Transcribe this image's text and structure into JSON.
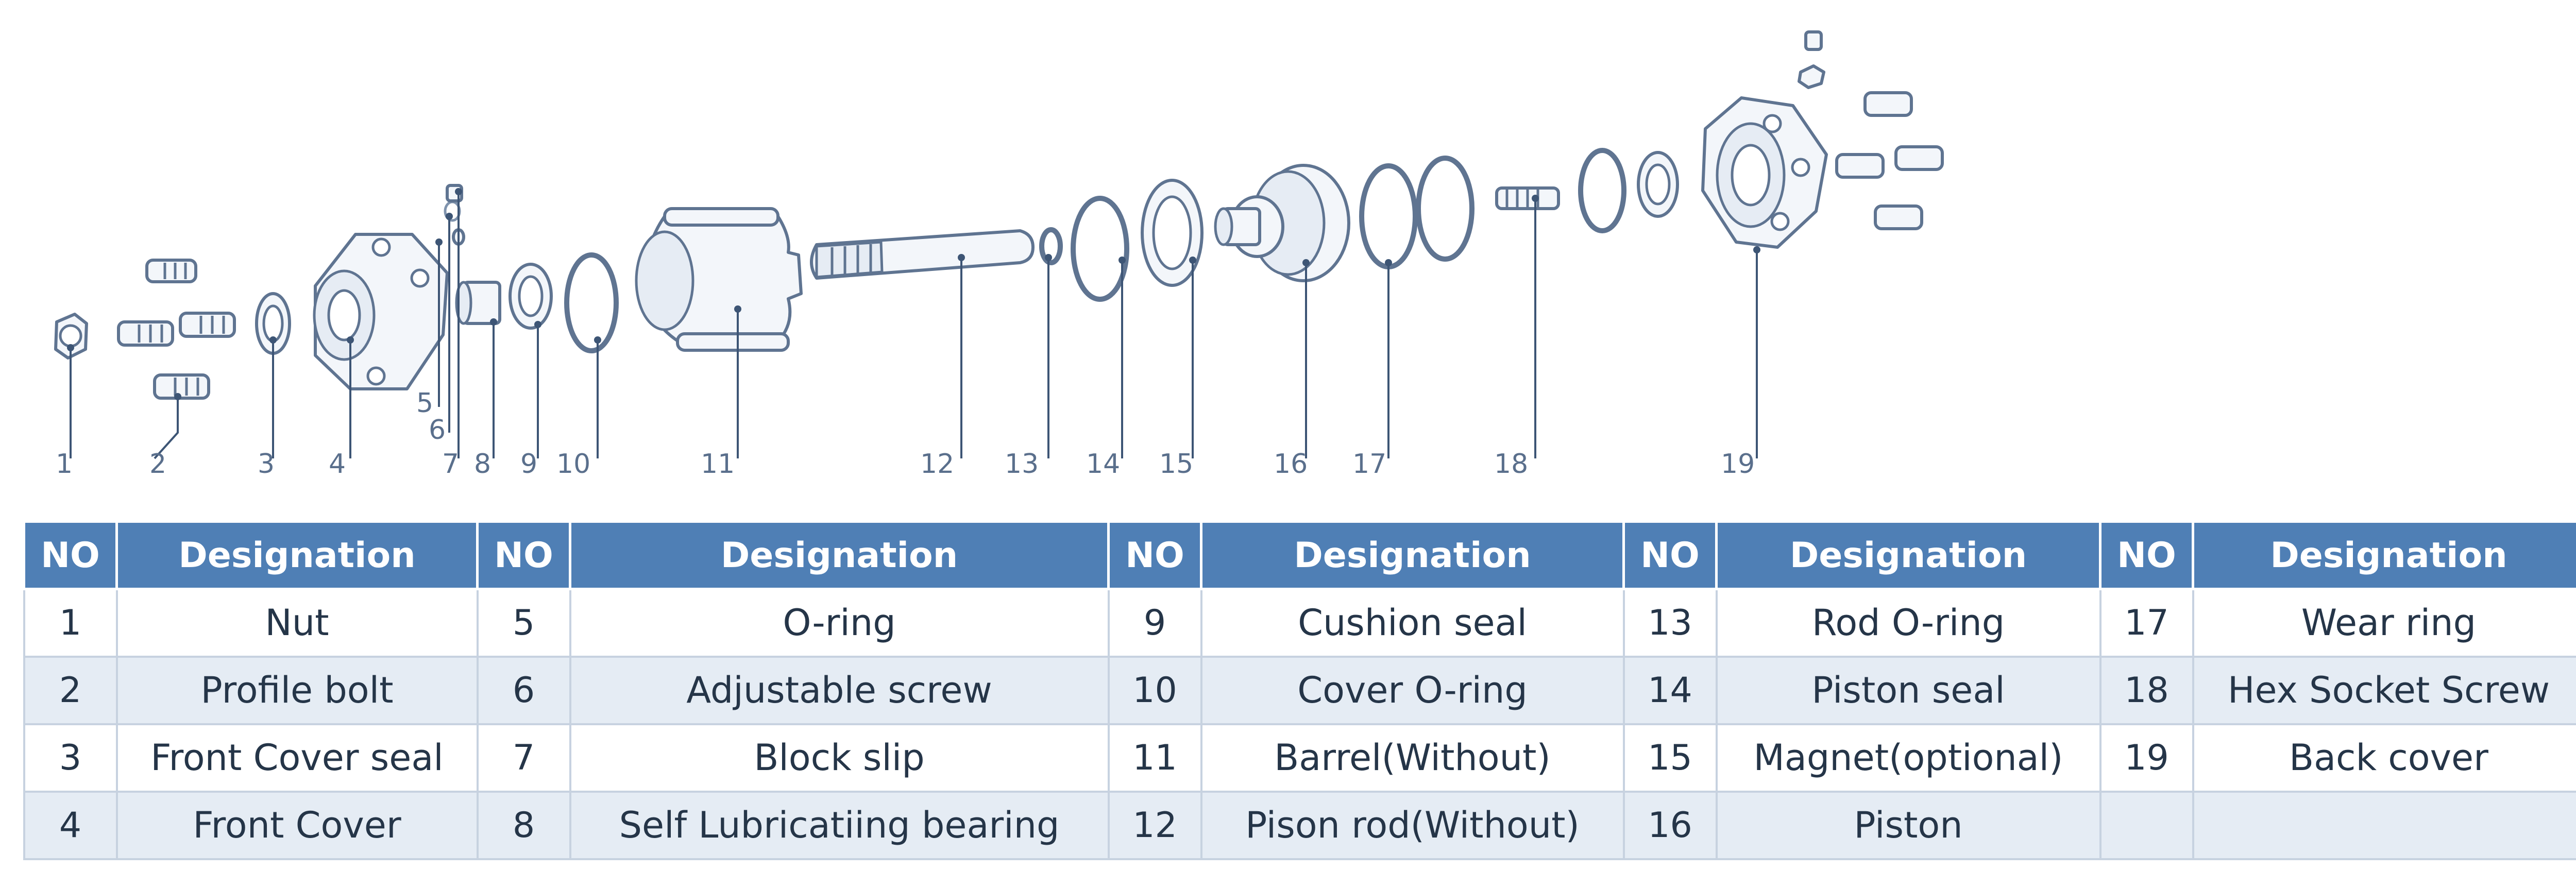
{
  "diagram": {
    "callouts": [
      "1",
      "2",
      "3",
      "4",
      "5",
      "6",
      "7",
      "8",
      "9",
      "10",
      "11",
      "12",
      "13",
      "14",
      "15",
      "16",
      "17",
      "18",
      "19"
    ]
  },
  "table": {
    "headers": [
      "NO",
      "Designation",
      "NO",
      "Designation",
      "NO",
      "Designation",
      "NO",
      "Designation",
      "NO",
      "Designation"
    ],
    "rows": [
      [
        {
          "no": "1",
          "name": "Nut"
        },
        {
          "no": "5",
          "name": "O-ring"
        },
        {
          "no": "9",
          "name": "Cushion seal"
        },
        {
          "no": "13",
          "name": "Rod O-ring"
        },
        {
          "no": "17",
          "name": "Wear ring"
        }
      ],
      [
        {
          "no": "2",
          "name": "Profile bolt"
        },
        {
          "no": "6",
          "name": "Adjustable screw"
        },
        {
          "no": "10",
          "name": "Cover O-ring"
        },
        {
          "no": "14",
          "name": "Piston seal"
        },
        {
          "no": "18",
          "name": "Hex Socket Screw"
        }
      ],
      [
        {
          "no": "3",
          "name": "Front Cover seal"
        },
        {
          "no": "7",
          "name": "Block slip"
        },
        {
          "no": "11",
          "name": "Barrel(Without)"
        },
        {
          "no": "15",
          "name": "Magnet(optional)"
        },
        {
          "no": "19",
          "name": "Back cover"
        }
      ],
      [
        {
          "no": "4",
          "name": "Front Cover"
        },
        {
          "no": "8",
          "name": "Self Lubricatiing bearing"
        },
        {
          "no": "12",
          "name": "Pison rod(Without)"
        },
        {
          "no": "16",
          "name": "Piston"
        },
        {
          "no": "",
          "name": ""
        }
      ]
    ]
  },
  "colors": {
    "header_bg": "#4f7fb5",
    "header_text": "#ffffff",
    "row_alt_bg": "#e5ecf4",
    "line": "#5f7491",
    "label": "#5a6f8c"
  }
}
